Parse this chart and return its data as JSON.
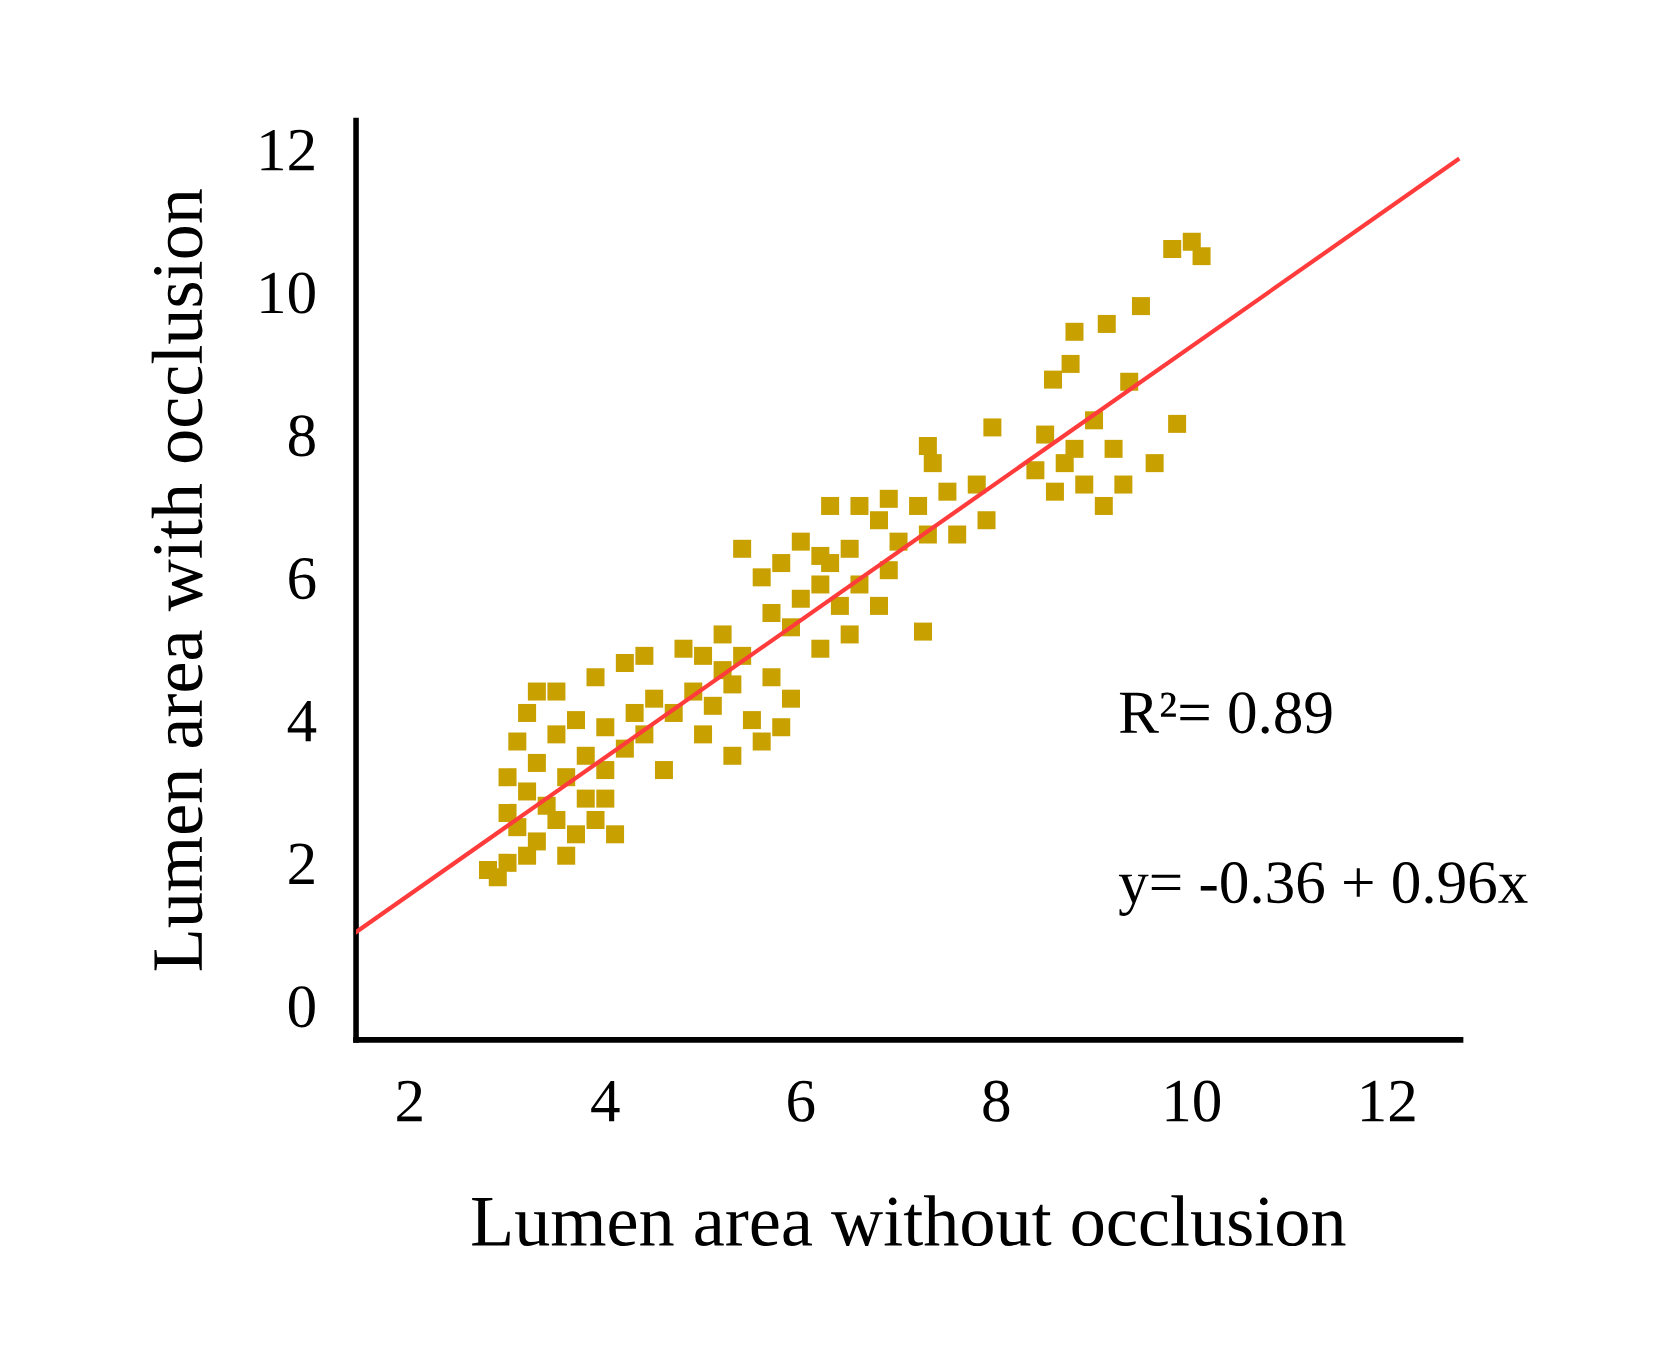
{
  "chart_data": {
    "type": "scatter",
    "xlabel": "Lumen area without occlusion",
    "ylabel": "Lumen area with occlusion",
    "annotations": [
      "R²= 0.89",
      "y= -0.36 + 0.96x"
    ],
    "xlim": [
      1.45,
      12.75
    ],
    "ylim": [
      -0.48,
      12.4
    ],
    "xticks": [
      2,
      4,
      6,
      8,
      10,
      12
    ],
    "yticks": [
      0,
      2,
      4,
      6,
      8,
      10,
      12
    ],
    "grid": false,
    "legend": false,
    "marker": "square",
    "series": [
      {
        "color": "#c8a000",
        "x": [
          9.8,
          10.0,
          10.1,
          9.48,
          9.13,
          8.8,
          9.36,
          8.76,
          8.58,
          7.96,
          9.85,
          9.62,
          8.5,
          8.7,
          8.9,
          9.0,
          9.2,
          8.6,
          9.1,
          8.8,
          8.4,
          9.3,
          7.3,
          7.35,
          6.3,
          6.6,
          6.9,
          7.2,
          7.5,
          7.8,
          7.9,
          7.6,
          7.0,
          6.8,
          7.3,
          6.5,
          6.2,
          5.4,
          5.6,
          5.8,
          6.0,
          6.2,
          6.4,
          6.6,
          6.8,
          6.9,
          6.5,
          6.2,
          5.9,
          5.7,
          6.0,
          6.3,
          7.25,
          4.8,
          5.0,
          5.2,
          5.4,
          4.9,
          5.1,
          5.3,
          5.5,
          5.6,
          5.8,
          5.9,
          5.3,
          5.0,
          4.7,
          5.7,
          5.2,
          3.3,
          3.5,
          3.9,
          4.2,
          4.4,
          3.2,
          3.1,
          3.3,
          3.5,
          3.7,
          3.8,
          4.0,
          4.3,
          4.5,
          3.0,
          3.2,
          3.4,
          3.6,
          3.8,
          4.0,
          4.2,
          4.4,
          3.1,
          3.3,
          3.5,
          3.7,
          3.9,
          4.1,
          2.8,
          2.9,
          3.0,
          3.2,
          3.6,
          4.0,
          4.6,
          3.0
        ],
        "values": [
          10.6,
          10.7,
          10.5,
          9.8,
          9.55,
          9.44,
          8.74,
          8.99,
          8.77,
          8.1,
          8.15,
          7.6,
          8.0,
          7.6,
          7.3,
          8.2,
          7.8,
          7.2,
          7.0,
          7.8,
          7.5,
          7.3,
          7.84,
          7.6,
          7.0,
          7.0,
          7.1,
          7.0,
          7.2,
          7.3,
          6.8,
          6.6,
          6.5,
          6.8,
          6.6,
          6.4,
          6.3,
          6.4,
          6.0,
          6.2,
          6.5,
          5.9,
          5.6,
          5.9,
          5.6,
          6.1,
          5.2,
          5.0,
          5.3,
          5.5,
          5.7,
          6.2,
          5.24,
          5.0,
          4.9,
          4.7,
          4.9,
          4.4,
          4.2,
          4.5,
          4.0,
          3.7,
          3.9,
          4.3,
          3.5,
          3.8,
          4.1,
          4.6,
          5.2,
          4.4,
          4.4,
          4.6,
          4.8,
          4.9,
          4.1,
          3.7,
          3.4,
          3.8,
          4.0,
          3.5,
          3.9,
          4.1,
          4.3,
          3.2,
          3.0,
          2.8,
          3.2,
          2.9,
          3.3,
          3.6,
          3.8,
          2.5,
          2.3,
          2.6,
          2.4,
          2.6,
          2.4,
          1.9,
          1.8,
          2.0,
          2.1,
          2.1,
          2.9,
          3.3,
          2.7
        ]
      },
      {
        "type": "line",
        "color": "#ff3b3b",
        "marker": "none",
        "x": [
          1.45,
          12.72
        ],
        "values": [
          1.03,
          11.85
        ]
      }
    ]
  }
}
